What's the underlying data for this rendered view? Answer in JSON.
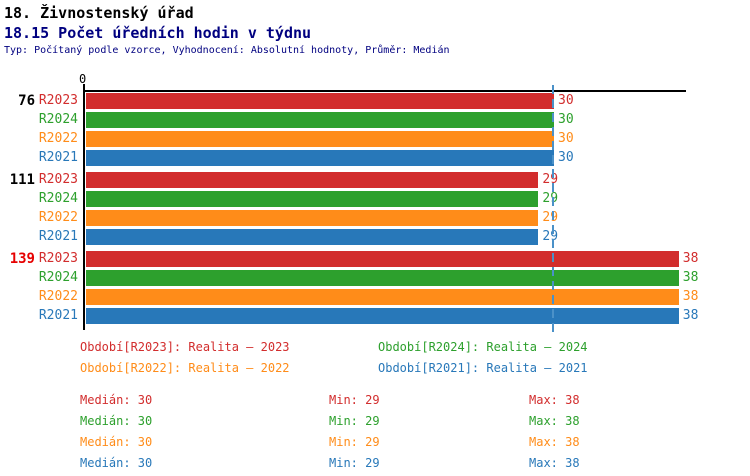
{
  "header": {
    "title": "18. Živnostenský úřad",
    "subtitle": "18.15 Počet úředních hodin v týdnu",
    "meta": "Typ: Počítaný podle vzorce, Vyhodnocení: Absolutní hodnoty, Průměr: Medián"
  },
  "colors": {
    "r2023": "#d22d2d",
    "r2024": "#2da02d",
    "r2022": "#ff8c19",
    "r2021": "#2878b9",
    "median_line": "#4b91c8",
    "highlight_group_label": "#e60000",
    "group_label": "#000000",
    "title_accent": "#000080"
  },
  "chart_data": {
    "type": "bar",
    "orientation": "horizontal",
    "title": "18.15 Počet úředních hodin v týdnu",
    "x_axis": {
      "origin_tick": "0",
      "min": 0,
      "max_visible": 38.5,
      "gridlines": false
    },
    "median_line_value": 30,
    "legend_position": "bottom",
    "series": [
      "R2023",
      "R2024",
      "R2022",
      "R2021"
    ],
    "groups": [
      {
        "label": "76",
        "highlight": false,
        "values": [
          30,
          30,
          30,
          30
        ]
      },
      {
        "label": "111",
        "highlight": false,
        "values": [
          29,
          29,
          29,
          29
        ]
      },
      {
        "label": "139",
        "highlight": true,
        "values": [
          38,
          38,
          38,
          38
        ]
      }
    ]
  },
  "legend": [
    {
      "series": "R2023",
      "text": "Období[R2023]: Realita – 2023"
    },
    {
      "series": "R2024",
      "text": "Období[R2024]: Realita – 2024"
    },
    {
      "series": "R2022",
      "text": "Období[R2022]: Realita – 2022"
    },
    {
      "series": "R2021",
      "text": "Období[R2021]: Realita – 2021"
    }
  ],
  "stats": [
    {
      "series": "R2023",
      "median_label": "Medián:",
      "median": "30",
      "min_label": "Min:",
      "min": "29",
      "max_label": "Max:",
      "max": "38"
    },
    {
      "series": "R2024",
      "median_label": "Medián:",
      "median": "30",
      "min_label": "Min:",
      "min": "29",
      "max_label": "Max:",
      "max": "38"
    },
    {
      "series": "R2022",
      "median_label": "Medián:",
      "median": "30",
      "min_label": "Min:",
      "min": "29",
      "max_label": "Max:",
      "max": "38"
    },
    {
      "series": "R2021",
      "median_label": "Medián:",
      "median": "30",
      "min_label": "Min:",
      "min": "29",
      "max_label": "Max:",
      "max": "38"
    }
  ]
}
